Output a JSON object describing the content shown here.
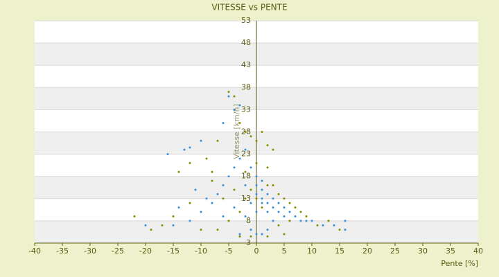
{
  "chart_data": {
    "type": "scatter",
    "title": "VITESSE vs PENTE",
    "x_label": "Pente [%]",
    "y_label": "Vitesse [km/h]",
    "xlim": [
      -40,
      40
    ],
    "xticks": [
      -40,
      -35,
      -30,
      -25,
      -20,
      -15,
      -10,
      -5,
      0,
      5,
      10,
      15,
      20,
      25,
      30,
      35,
      40
    ],
    "ylim": [
      3,
      53
    ],
    "yticks": [
      3,
      8,
      13,
      18,
      23,
      28,
      33,
      38,
      43,
      48,
      53
    ],
    "grid": true,
    "series": [
      {
        "color": "#3a8fd9",
        "x": [
          -16,
          -13,
          -12,
          -10,
          -6,
          -4,
          -3,
          -5,
          -20,
          -15,
          -12,
          -10,
          -8,
          -7,
          -6,
          -5,
          -4,
          -3,
          -2,
          -1,
          0,
          0,
          0,
          1,
          1,
          1,
          2,
          2,
          2,
          3,
          3,
          4,
          4,
          5,
          5,
          6,
          7,
          8,
          9,
          10,
          12,
          14,
          16,
          16,
          -1,
          0,
          1,
          -3,
          2,
          -2,
          -4,
          -6,
          -9,
          -11,
          -14,
          -1,
          0,
          1,
          -2,
          3
        ],
        "values": [
          23,
          24,
          24.5,
          26,
          30,
          33,
          34,
          36,
          7,
          7,
          8,
          10,
          12,
          14,
          16,
          18,
          20,
          22,
          24,
          20,
          18,
          16,
          14,
          15,
          13,
          12,
          14,
          12,
          10,
          11,
          13,
          12,
          10,
          9,
          11,
          10,
          9,
          8,
          8,
          8,
          7,
          7,
          6,
          8,
          6,
          5,
          5,
          5,
          6,
          9,
          11,
          9,
          13,
          15,
          11,
          12,
          10,
          17,
          16,
          8
        ]
      },
      {
        "color": "#8a8a00",
        "x": [
          -22,
          -19,
          -17,
          -14,
          -12,
          -9,
          -7,
          -5,
          -4,
          -3,
          -2,
          -1,
          0,
          1,
          2,
          3,
          -8,
          -6,
          -4,
          -2,
          -1,
          0,
          1,
          2,
          3,
          4,
          5,
          6,
          7,
          8,
          9,
          11,
          13,
          15,
          -10,
          -7,
          -3,
          -1,
          2,
          5,
          -5,
          -3,
          4,
          6,
          -12,
          -15,
          -8,
          0,
          2,
          -2
        ],
        "values": [
          9,
          6,
          7,
          19,
          21,
          22,
          26,
          37,
          36,
          30,
          28,
          27,
          26,
          28,
          25,
          24,
          17,
          13,
          15,
          13,
          15,
          13,
          11,
          16,
          16,
          14,
          13,
          12,
          11,
          10,
          9,
          7,
          8,
          6,
          6,
          6,
          4.5,
          4.5,
          4.5,
          5,
          8,
          10,
          7,
          8,
          12,
          9,
          19,
          21,
          20,
          19
        ]
      }
    ]
  }
}
